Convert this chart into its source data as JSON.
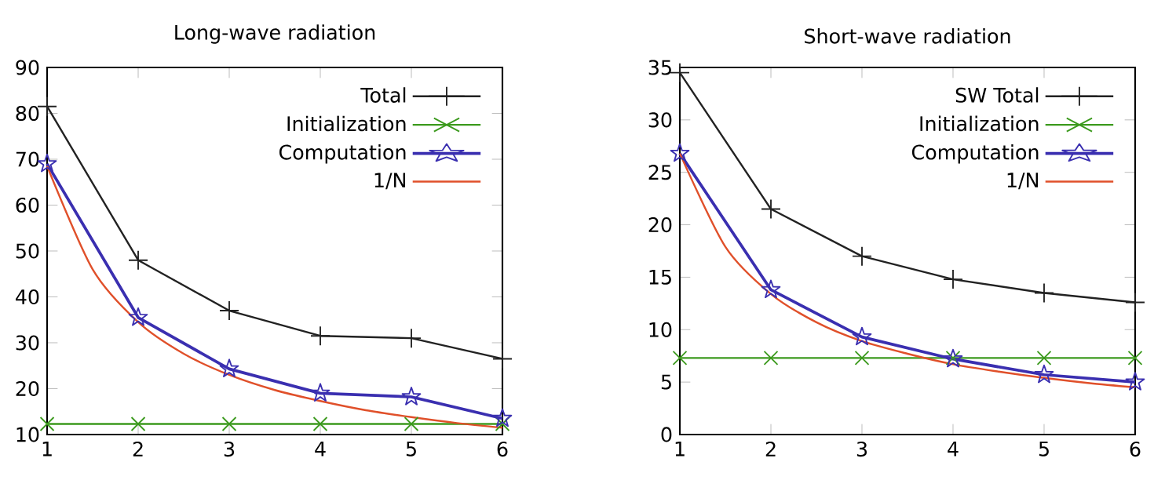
{
  "chart_data": [
    {
      "type": "line",
      "title": "Long-wave radiation",
      "x": [
        1,
        2,
        3,
        4,
        5,
        6
      ],
      "xlim": [
        1,
        6
      ],
      "xticks": [
        1,
        2,
        3,
        4,
        5,
        6
      ],
      "ylim": [
        10,
        90
      ],
      "yticks": [
        10,
        20,
        30,
        40,
        50,
        60,
        70,
        80,
        90
      ],
      "legend": "top right",
      "series": [
        {
          "name": "Total",
          "color": "#222222",
          "marker": "plus",
          "values": [
            81.5,
            48,
            37,
            31.5,
            31,
            26.5
          ]
        },
        {
          "name": "Initialization",
          "color": "#3c9a1e",
          "marker": "cross",
          "values": [
            12.3,
            12.3,
            12.3,
            12.3,
            12.3,
            12.3
          ]
        },
        {
          "name": "Computation",
          "color": "#3a2fb0",
          "marker": "star",
          "values": [
            69,
            35.5,
            24.3,
            19,
            18.2,
            13.5
          ]
        },
        {
          "name": "1/N",
          "color": "#e0502a",
          "marker": "none",
          "x": [
            1,
            1.5,
            2,
            2.5,
            3,
            3.5,
            4,
            4.5,
            5,
            5.5,
            6
          ],
          "values": [
            68.5,
            46,
            34.5,
            27.6,
            23,
            19.7,
            17.3,
            15.3,
            13.8,
            12.5,
            11.5
          ]
        }
      ]
    },
    {
      "type": "line",
      "title": "Short-wave radiation",
      "x": [
        1,
        2,
        3,
        4,
        5,
        6
      ],
      "xlim": [
        1,
        6
      ],
      "xticks": [
        1,
        2,
        3,
        4,
        5,
        6
      ],
      "ylim": [
        0,
        35
      ],
      "yticks": [
        0,
        5,
        10,
        15,
        20,
        25,
        30,
        35
      ],
      "legend": "top right",
      "series": [
        {
          "name": "SW Total",
          "color": "#222222",
          "marker": "plus",
          "values": [
            34.5,
            21.5,
            17,
            14.8,
            13.5,
            12.6
          ]
        },
        {
          "name": "Initialization",
          "color": "#3c9a1e",
          "marker": "cross",
          "values": [
            7.3,
            7.3,
            7.3,
            7.3,
            7.3,
            7.3
          ]
        },
        {
          "name": "Computation",
          "color": "#3a2fb0",
          "marker": "star",
          "values": [
            26.8,
            13.8,
            9.3,
            7.2,
            5.7,
            5.0
          ]
        },
        {
          "name": "1/N",
          "color": "#e0502a",
          "marker": "none",
          "x": [
            1,
            1.5,
            2,
            2.5,
            3,
            3.5,
            4,
            4.5,
            5,
            5.5,
            6
          ],
          "values": [
            26.8,
            17.9,
            13.4,
            10.7,
            8.9,
            7.7,
            6.7,
            6.0,
            5.4,
            4.9,
            4.5
          ]
        }
      ]
    }
  ]
}
